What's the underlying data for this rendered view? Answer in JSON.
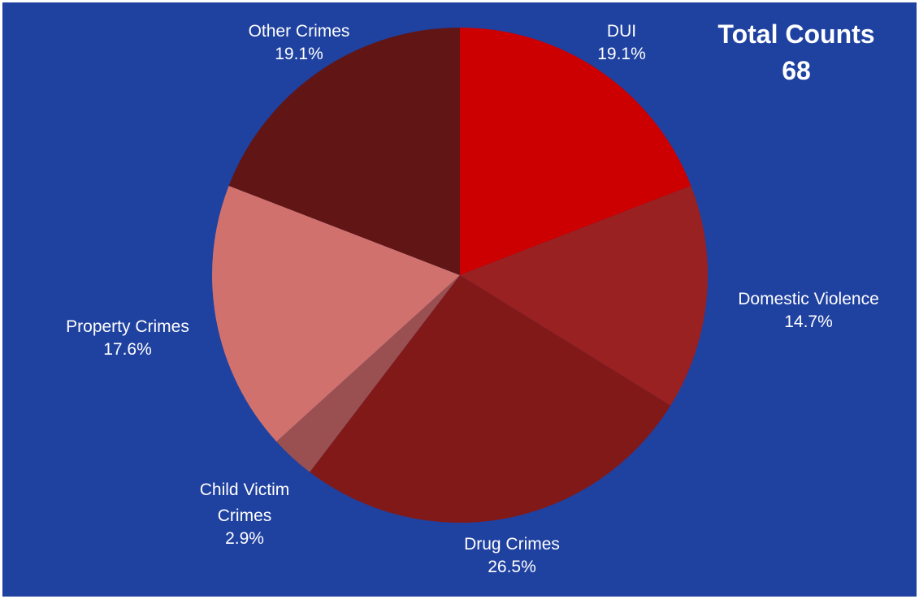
{
  "chart_data": {
    "type": "pie",
    "title": "",
    "background_color": "#1f41a0",
    "total": {
      "label": "Total Counts",
      "value": "68"
    },
    "slices": [
      {
        "name": "DUI",
        "percent_label": "19.1%",
        "value": 19.1,
        "color": "#cc0000"
      },
      {
        "name": "Domestic Violence",
        "percent_label": "14.7%",
        "value": 14.7,
        "color": "#9a2121"
      },
      {
        "name": "Drug Crimes",
        "percent_label": "26.5%",
        "value": 26.5,
        "color": "#821919"
      },
      {
        "name": "Child Victim Crimes",
        "percent_label": "2.9%",
        "value": 2.9,
        "color": "#9a5050"
      },
      {
        "name": "Property Crimes",
        "percent_label": "17.6%",
        "value": 17.6,
        "color": "#d1716d"
      },
      {
        "name": "Other Crimes",
        "percent_label": "19.1%",
        "value": 19.1,
        "color": "#611515"
      }
    ]
  }
}
